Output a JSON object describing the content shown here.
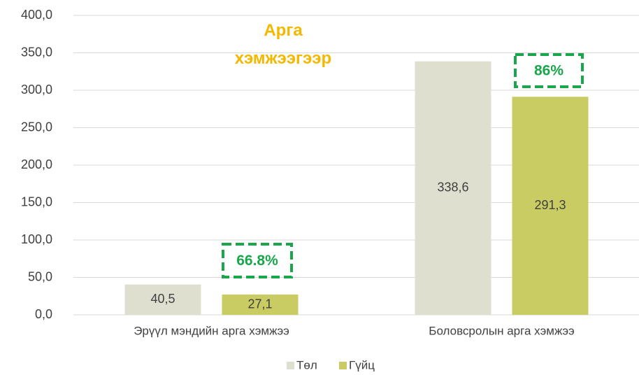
{
  "chart_data": {
    "type": "bar",
    "title": "Арга хэмжээгээр",
    "categories": [
      "Эрүүл мэндийн арга хэмжээ",
      "Боловсролын арга хэмжээ"
    ],
    "series": [
      {
        "name": "Төл",
        "color": "#dfdfd0",
        "values": [
          40.5,
          338.6
        ],
        "value_labels": [
          "40,5",
          "338,6"
        ]
      },
      {
        "name": "Гүйц",
        "color": "#c9cc63",
        "values": [
          27.1,
          291.3
        ],
        "value_labels": [
          "27,1",
          "291,3"
        ]
      }
    ],
    "annotations": [
      "66.8%",
      "86%"
    ],
    "ylim": [
      0,
      400
    ],
    "yticks": [
      {
        "value": 0,
        "label": "0,0"
      },
      {
        "value": 50,
        "label": "50,0"
      },
      {
        "value": 100,
        "label": "100,0"
      },
      {
        "value": 150,
        "label": "150,0"
      },
      {
        "value": 200,
        "label": "200,0"
      },
      {
        "value": 250,
        "label": "250,0"
      },
      {
        "value": 300,
        "label": "300,0"
      },
      {
        "value": 350,
        "label": "350,0"
      },
      {
        "value": 400,
        "label": "400,0"
      }
    ],
    "grid": true,
    "legend": "bottom"
  }
}
